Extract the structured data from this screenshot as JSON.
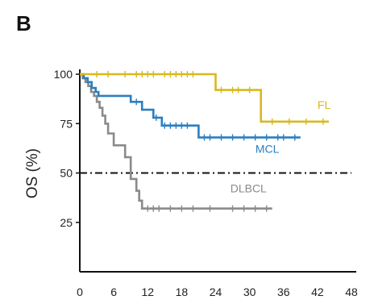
{
  "panel_label": "B",
  "chart_data": {
    "type": "line",
    "title": "",
    "xlabel": "",
    "ylabel": "OS (%)",
    "xlim": [
      0,
      48
    ],
    "ylim": [
      0,
      100
    ],
    "x_ticks": [
      0,
      6,
      12,
      18,
      24,
      30,
      36,
      42,
      48
    ],
    "y_ticks": [
      25,
      50,
      75,
      100
    ],
    "reference_line": {
      "y": 50,
      "style": "dash-dot"
    },
    "grid": false,
    "legend": "none (direct labels at curve ends)",
    "series": [
      {
        "name": "FL",
        "color": "#d9b81f",
        "x": [
          0,
          24,
          24,
          32,
          32,
          44
        ],
        "y": [
          100,
          100,
          92,
          92,
          76,
          76
        ],
        "censor_x": [
          3,
          5,
          8,
          10,
          11,
          12,
          13,
          15,
          16,
          17,
          18,
          19,
          20,
          25,
          27,
          28,
          30,
          34,
          37,
          40,
          43
        ]
      },
      {
        "name": "MCL",
        "color": "#2a7fc1",
        "x": [
          0,
          0.7,
          0.7,
          1.4,
          1.4,
          2.1,
          2.1,
          2.8,
          2.8,
          3.3,
          3.3,
          9,
          9,
          11,
          11,
          13,
          13,
          14.5,
          14.5,
          21,
          21,
          39
        ],
        "y": [
          100,
          100,
          98,
          98,
          96,
          96,
          93,
          93,
          91,
          91,
          89,
          89,
          86,
          86,
          82,
          82,
          78,
          78,
          74,
          74,
          68,
          68
        ],
        "censor_x": [
          10,
          13.5,
          15,
          16,
          17,
          18,
          19,
          22,
          23,
          25,
          27,
          29,
          31,
          33,
          35,
          36,
          38
        ]
      },
      {
        "name": "DLBCL",
        "color": "#8a8a8a",
        "x": [
          0,
          0.5,
          0.5,
          1,
          1,
          1.5,
          1.5,
          2,
          2,
          2.5,
          2.5,
          3,
          3,
          3.5,
          3.5,
          4,
          4,
          4.5,
          4.5,
          5,
          5,
          6,
          6,
          8,
          8,
          9,
          9,
          10,
          10,
          10.5,
          10.5,
          11,
          11,
          34
        ],
        "y": [
          100,
          100,
          98,
          98,
          96,
          96,
          94,
          94,
          91,
          91,
          89,
          89,
          86,
          86,
          83,
          83,
          79,
          79,
          75,
          75,
          70,
          70,
          64,
          64,
          58,
          58,
          47,
          47,
          41,
          41,
          36,
          36,
          32,
          32
        ],
        "censor_x": [
          12,
          13,
          14,
          16,
          18,
          20,
          23,
          27,
          29,
          31,
          33
        ]
      }
    ]
  }
}
